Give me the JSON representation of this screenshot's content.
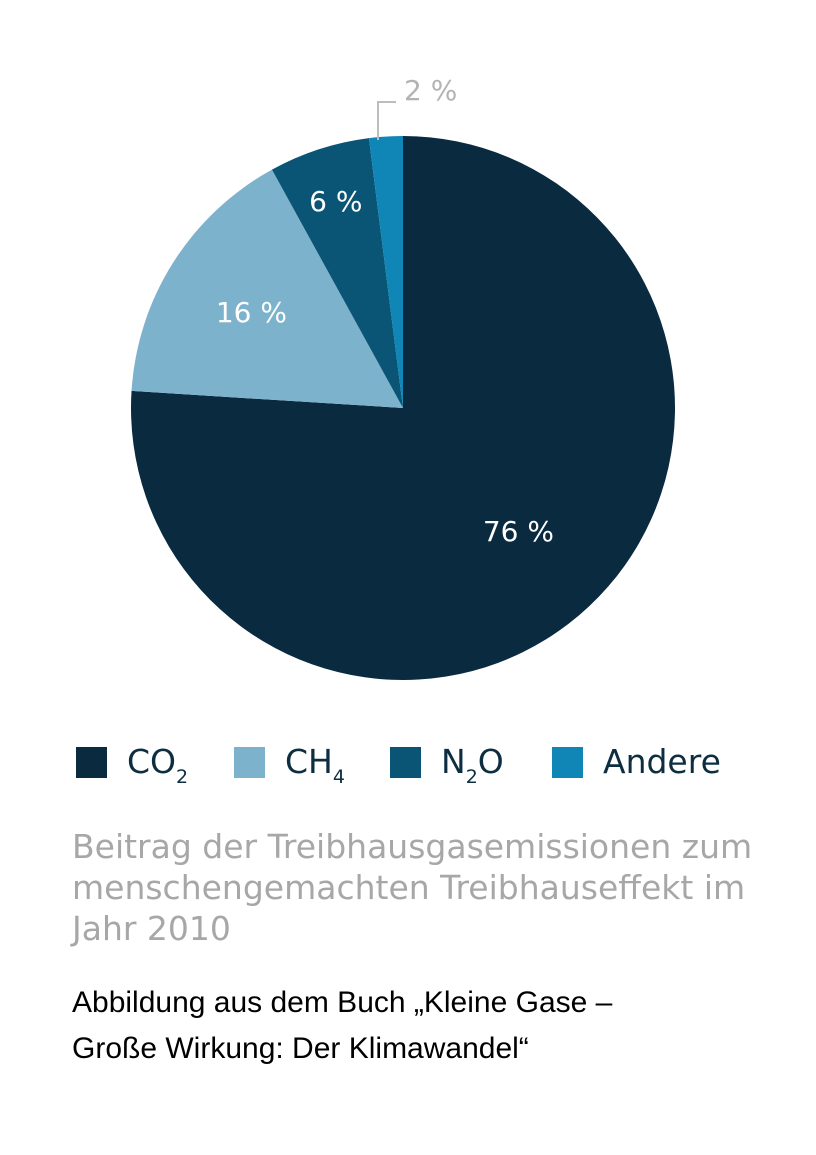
{
  "chart_data": {
    "type": "pie",
    "categories": [
      "CO2",
      "CH4",
      "N2O",
      "Andere"
    ],
    "values": [
      76,
      16,
      6,
      2
    ],
    "data_labels": [
      "76 %",
      "16 %",
      "6 %",
      "2 %"
    ],
    "colors": [
      "#0a2a3f",
      "#7db2cd",
      "#0a5575",
      "#0f86b5"
    ],
    "legend": [
      {
        "base": "CO",
        "sub": "2",
        "suffix": ""
      },
      {
        "base": "CH",
        "sub": "4",
        "suffix": ""
      },
      {
        "base": "N",
        "sub": "2",
        "suffix": "O"
      },
      {
        "base": "Andere",
        "sub": "",
        "suffix": ""
      }
    ],
    "legend_position": "bottom",
    "title": "Beitrag der Treibhausgasemissionen zum menschengemachten Treibhauseffekt im Jahr 2010"
  },
  "caption": {
    "line1": "Beitrag der Treibhausgasemissionen zum",
    "line2": "menschengemachten Treibhauseffekt im",
    "line3": "Jahr 2010"
  },
  "source": {
    "line1": "Abbildung aus dem Buch „Kleine Gase –",
    "line2": "Große Wirkung: Der Klimawandel“"
  }
}
